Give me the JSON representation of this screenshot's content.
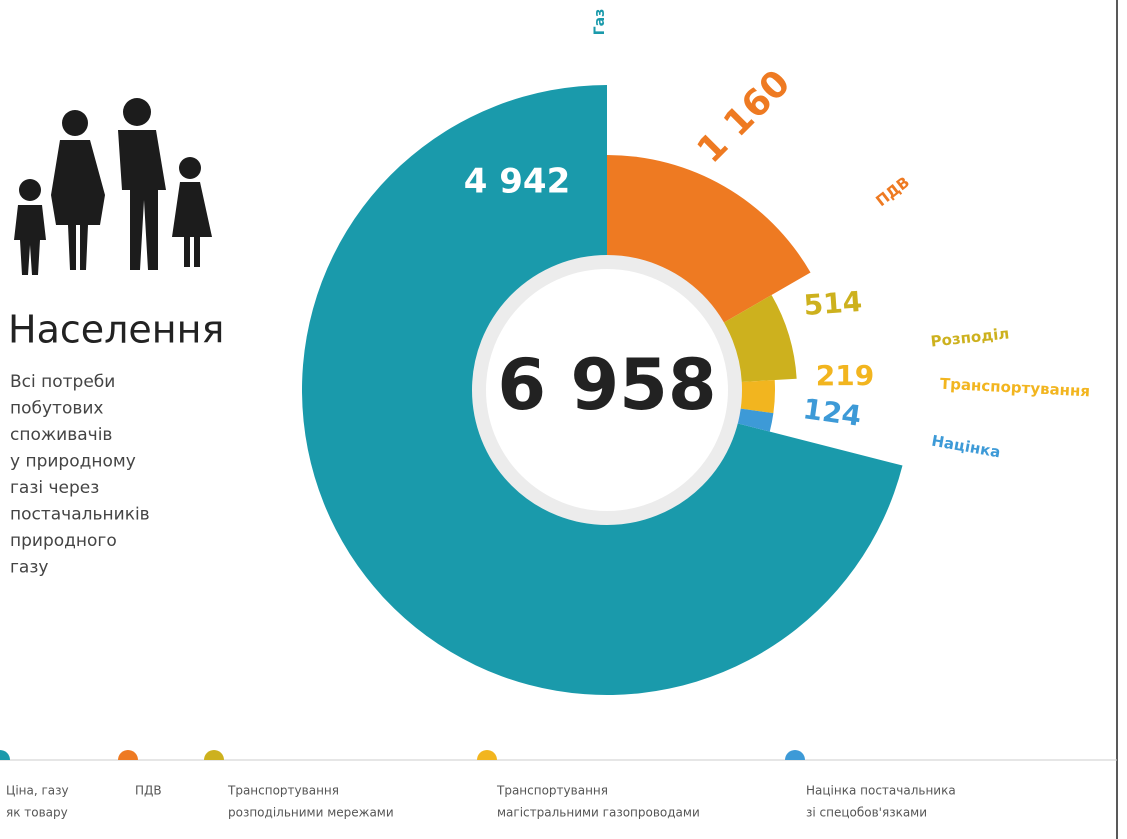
{
  "chart_data": {
    "type": "donut",
    "title": "Населення",
    "description": [
      "Всі потреби",
      "побутових",
      "споживачів",
      "у природному",
      "газі через",
      "постачальників",
      "природного",
      "газу"
    ],
    "total": {
      "value": 6958,
      "label": "6 958"
    },
    "categories": [
      "Газ",
      "ПДВ",
      "Розподіл",
      "Транспортування",
      "Націнка"
    ],
    "values": [
      4942,
      1160,
      514,
      219,
      124
    ],
    "value_labels": [
      "4 942",
      "1 160",
      "514",
      "219",
      "124"
    ],
    "colors": [
      "#1a9aab",
      "#ee7a22",
      "#cdb11e",
      "#f2b51f",
      "#3d9ad7"
    ],
    "legend": [
      {
        "lines": [
          "Ціна, газу",
          "як товару"
        ],
        "color": "#1a9aab"
      },
      {
        "lines": [
          "ПДВ"
        ],
        "color": "#ee7a22"
      },
      {
        "lines": [
          "Транспортування",
          "розподільними мережами"
        ],
        "color": "#cdb11e"
      },
      {
        "lines": [
          "Транспортування",
          "магістральними газопроводами"
        ],
        "color": "#f2b51f"
      },
      {
        "lines": [
          "Націнка постачальника",
          "зі спецобов'язками"
        ],
        "color": "#3d9ad7"
      }
    ]
  }
}
